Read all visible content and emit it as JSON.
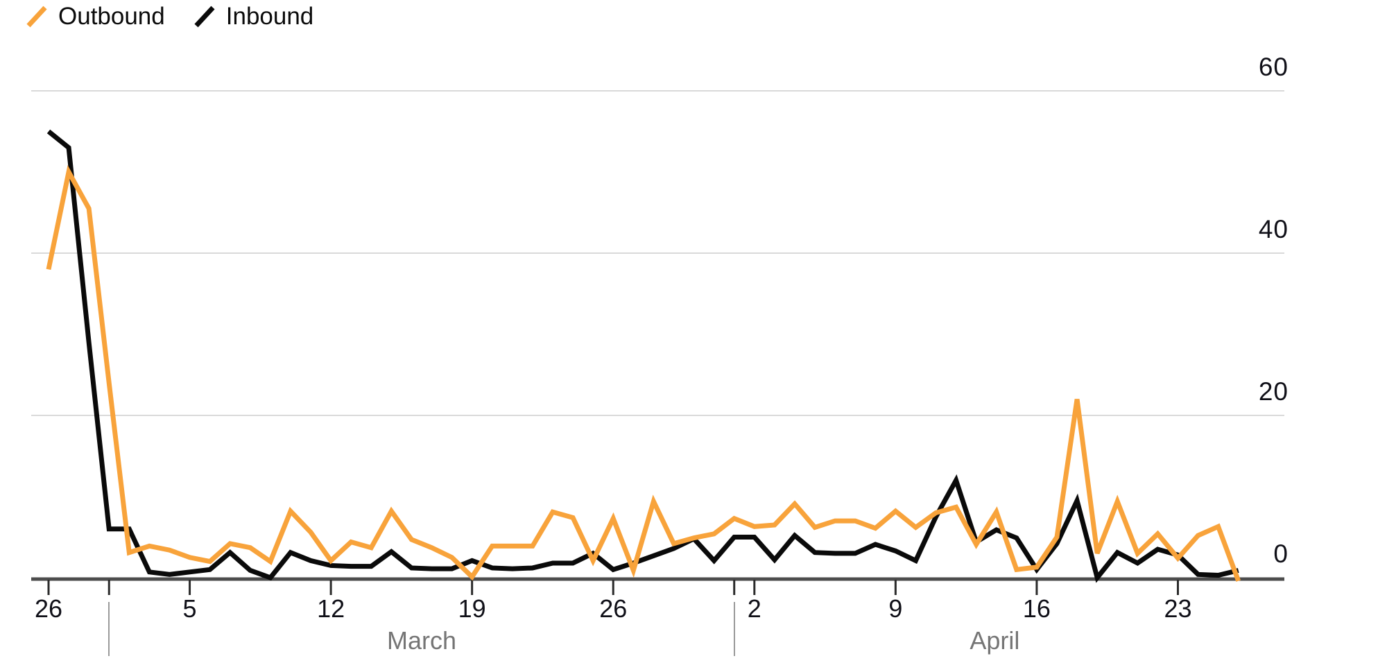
{
  "legend": {
    "items": [
      {
        "label": "Outbound",
        "color": "#F8A33B",
        "icon": "diagonal-line-swatch"
      },
      {
        "label": "Inbound",
        "color": "#0a0a0a",
        "icon": "diagonal-line-swatch"
      }
    ]
  },
  "chart_data": {
    "type": "line",
    "title": "",
    "xlabel": "",
    "ylabel": "",
    "ylim": [
      0,
      60
    ],
    "yticks": [
      0,
      20,
      40,
      60
    ],
    "grid": "horizontal",
    "legend_position": "top-left",
    "x": [
      "Feb 26",
      "Feb 27",
      "Feb 28",
      "Mar 1",
      "Mar 2",
      "Mar 3",
      "Mar 4",
      "Mar 5",
      "Mar 6",
      "Mar 7",
      "Mar 8",
      "Mar 9",
      "Mar 10",
      "Mar 11",
      "Mar 12",
      "Mar 13",
      "Mar 14",
      "Mar 15",
      "Mar 16",
      "Mar 17",
      "Mar 18",
      "Mar 19",
      "Mar 20",
      "Mar 21",
      "Mar 22",
      "Mar 23",
      "Mar 24",
      "Mar 25",
      "Mar 26",
      "Mar 27",
      "Mar 28",
      "Mar 29",
      "Mar 30",
      "Mar 31",
      "Apr 1",
      "Apr 2",
      "Apr 3",
      "Apr 4",
      "Apr 5",
      "Apr 6",
      "Apr 7",
      "Apr 8",
      "Apr 9",
      "Apr 10",
      "Apr 11",
      "Apr 12",
      "Apr 13",
      "Apr 14",
      "Apr 15",
      "Apr 16",
      "Apr 17",
      "Apr 18",
      "Apr 19",
      "Apr 20",
      "Apr 21",
      "Apr 22",
      "Apr 23",
      "Apr 24",
      "Apr 25",
      "Apr 26"
    ],
    "series": [
      {
        "name": "Outbound",
        "color": "#F8A33B",
        "values": [
          38,
          50,
          45.5,
          24,
          3.1,
          3.9,
          3.4,
          2.5,
          2,
          4.2,
          3.7,
          2,
          8.2,
          5.6,
          2.1,
          4.4,
          3.7,
          8.2,
          4.7,
          3.7,
          2.5,
          0.1,
          3.9,
          3.9,
          3.9,
          8.1,
          7.4,
          2.1,
          7.3,
          0.9,
          9.4,
          4.2,
          4.9,
          5.4,
          7.3,
          6.3,
          6.5,
          9.1,
          6.2,
          7.0,
          7.0,
          6.1,
          8.2,
          6.2,
          8.0,
          8.7,
          4.1,
          8.1,
          1.0,
          1.3,
          5.0,
          22,
          3.0,
          9.4,
          3.0,
          5.4,
          2.4,
          5.2,
          6.3,
          -0.4
        ]
      },
      {
        "name": "Inbound",
        "color": "#0a0a0a",
        "values": [
          55,
          53,
          29,
          6,
          6,
          0.7,
          0.4,
          0.7,
          1,
          3.1,
          0.9,
          0,
          3.1,
          2.1,
          1.5,
          1.4,
          1.4,
          3.2,
          1.2,
          1.1,
          1.1,
          2.1,
          1.2,
          1.1,
          1.2,
          1.8,
          1.8,
          3.0,
          1.0,
          1.8,
          2.7,
          3.6,
          4.8,
          2.1,
          5.0,
          5.0,
          2.2,
          5.2,
          3.1,
          3.0,
          3.0,
          4.1,
          3.3,
          2.1,
          7.5,
          12.0,
          4.4,
          5.9,
          4.9,
          1.0,
          4.2,
          9.5,
          0,
          3.1,
          1.8,
          3.5,
          2.8,
          0.4,
          0.3,
          0.9
        ]
      }
    ],
    "x_ticks": [
      {
        "index": 0,
        "label": "26"
      },
      {
        "index": 3,
        "label": ""
      },
      {
        "index": 7,
        "label": "5"
      },
      {
        "index": 14,
        "label": "12"
      },
      {
        "index": 21,
        "label": "19"
      },
      {
        "index": 28,
        "label": "26"
      },
      {
        "index": 34,
        "label": ""
      },
      {
        "index": 35,
        "label": "2"
      },
      {
        "index": 42,
        "label": "9"
      },
      {
        "index": 49,
        "label": "16"
      },
      {
        "index": 56,
        "label": "23"
      }
    ],
    "month_dividers": [
      {
        "index": 3,
        "label": "March"
      },
      {
        "index": 34,
        "label": "April"
      }
    ],
    "colors": {
      "gridline": "#d9d9d9",
      "axis_line": "#4d4d4d",
      "tick": "#2b2b2b",
      "tick_label": "#101018",
      "month_label": "#757575"
    }
  }
}
